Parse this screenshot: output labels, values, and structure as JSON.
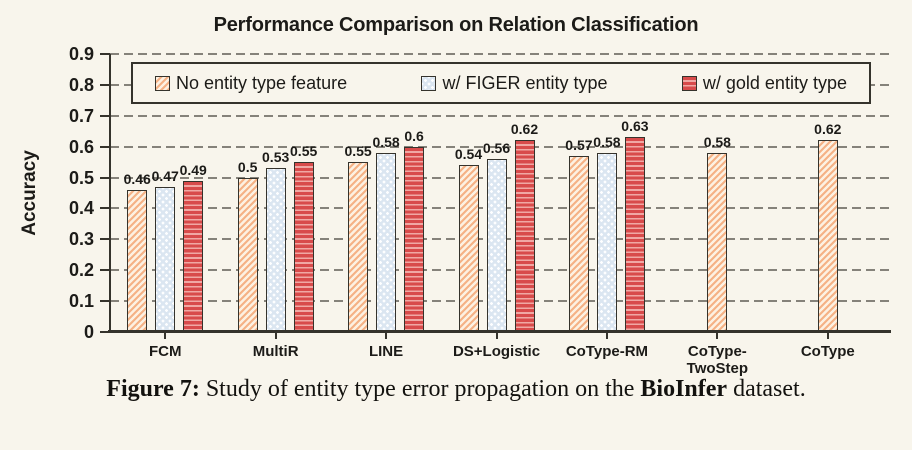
{
  "chart_data": {
    "type": "bar",
    "title": "Performance Comparison on Relation Classification",
    "ylabel": "Accuracy",
    "categories": [
      "FCM",
      "MultiR",
      "LINE",
      "DS+Logistic",
      "CoType-RM",
      "CoType-TwoStep",
      "CoType"
    ],
    "series": [
      {
        "name": "No entity type feature",
        "pattern": "orange-diagonal-hatch",
        "color": "#f5b286",
        "values": [
          0.46,
          0.5,
          0.55,
          0.54,
          0.57,
          0.58,
          0.62
        ]
      },
      {
        "name": "w/ FIGER entity type",
        "pattern": "blue-dot-lattice",
        "color": "#dbe6f1",
        "values": [
          0.47,
          0.53,
          0.58,
          0.56,
          0.58,
          null,
          null
        ]
      },
      {
        "name": "w/ gold entity type",
        "pattern": "red-horizontal-stripes",
        "color": "#d84b4b",
        "values": [
          0.49,
          0.55,
          0.6,
          0.62,
          0.63,
          null,
          null
        ]
      }
    ],
    "ylim": [
      0,
      0.9
    ],
    "ytick_step": 0.1,
    "grid": "horizontal-dashed",
    "legend_position": "top-inside",
    "axis_color": "#35332c",
    "grid_color": "#85827a",
    "background_color": "#f8f5ec"
  },
  "caption": {
    "prefix": "Figure 7:",
    "middle": " Study of entity type error propagation on the ",
    "bold": "BioInfer",
    "suffix": " dataset."
  }
}
